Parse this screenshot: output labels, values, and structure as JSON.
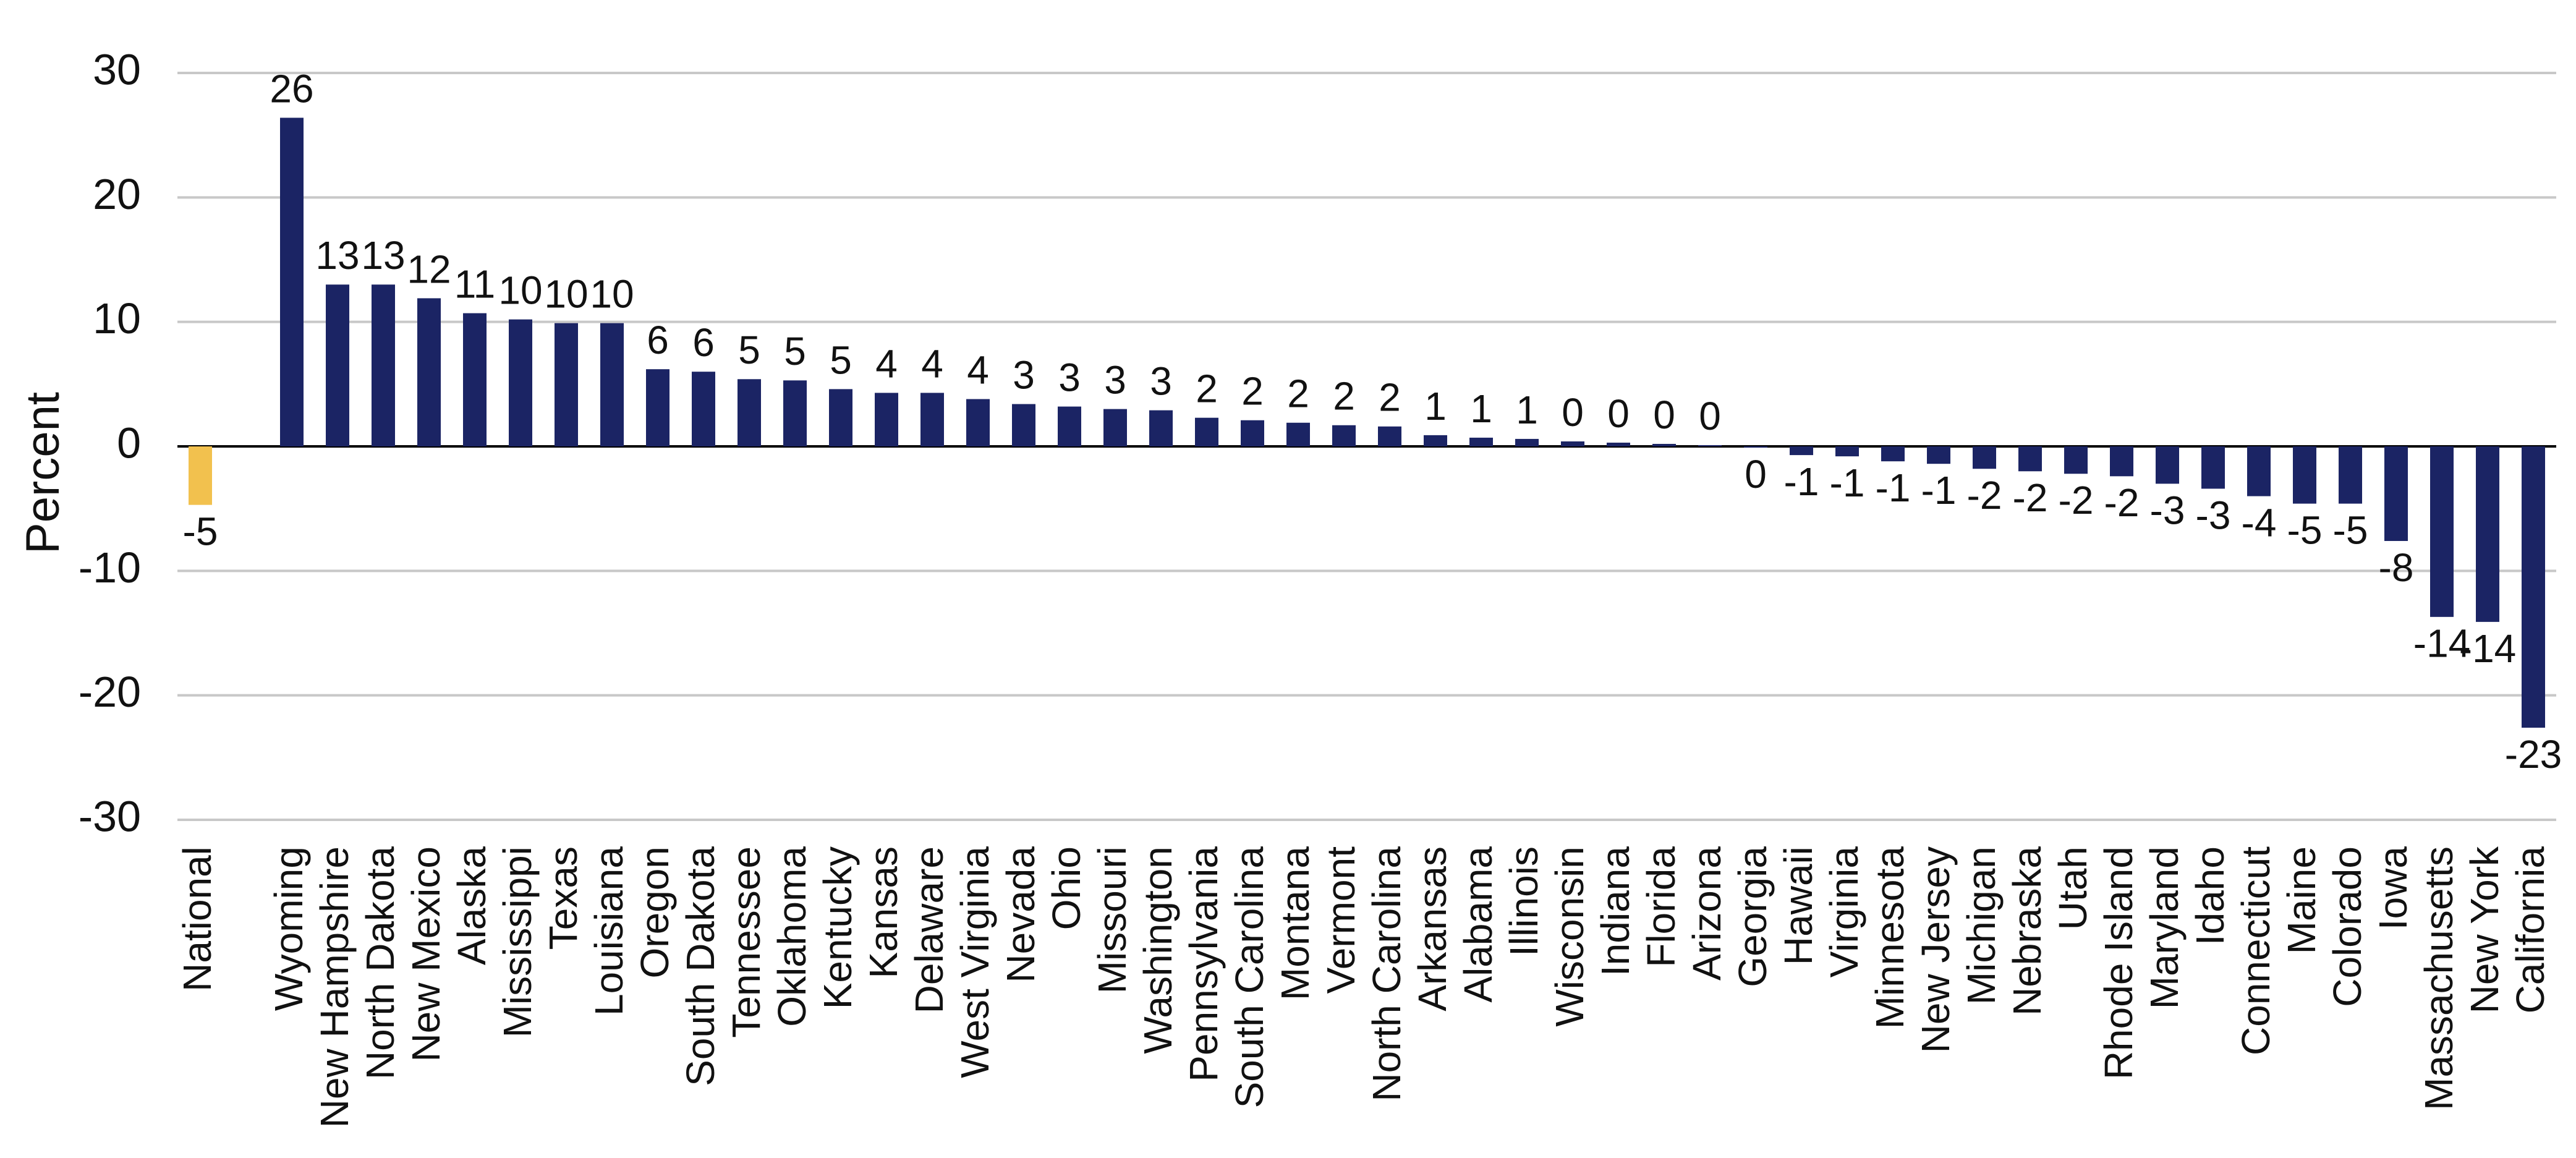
{
  "chart_data": {
    "type": "bar",
    "y_label": "Percent",
    "categories": [
      "National",
      null,
      "Wyoming",
      "New Hampshire",
      "North Dakota",
      "New Mexico",
      "Alaska",
      "Mississippi",
      "Texas",
      "Louisiana",
      "Oregon",
      "South Dakota",
      "Tennessee",
      "Oklahoma",
      "Kentucky",
      "Kansas",
      "Delaware",
      "West Virginia",
      "Nevada",
      "Ohio",
      "Missouri",
      "Washington",
      "Pennsylvania",
      "South Carolina",
      "Montana",
      "Vermont",
      "North Carolina",
      "Arkansas",
      "Alabama",
      "Illinois",
      "Wisconsin",
      "Indiana",
      "Florida",
      "Arizona",
      "Georgia",
      "Hawaii",
      "Virginia",
      "Minnesota",
      "New Jersey",
      "Michigan",
      "Nebraska",
      "Utah",
      "Rhode Island",
      "Maryland",
      "Idaho",
      "Connecticut",
      "Maine",
      "Colorado",
      "Iowa",
      "Massachusetts",
      "New York",
      "California"
    ],
    "values": [
      -4.7,
      null,
      26.4,
      13.0,
      13.0,
      11.9,
      10.7,
      10.2,
      9.9,
      9.9,
      6.2,
      6.0,
      5.4,
      5.3,
      4.6,
      4.3,
      4.3,
      3.8,
      3.4,
      3.2,
      3.0,
      2.9,
      2.3,
      2.1,
      1.9,
      1.7,
      1.6,
      0.9,
      0.7,
      0.6,
      0.4,
      0.3,
      0.2,
      0.1,
      -0.1,
      -0.7,
      -0.8,
      -1.2,
      -1.4,
      -1.8,
      -2.0,
      -2.2,
      -2.4,
      -3.0,
      -3.4,
      -4.0,
      -4.6,
      -4.6,
      -7.6,
      -13.7,
      -14.1,
      -22.6
    ],
    "value_labels": [
      "-5",
      null,
      "26",
      "13",
      "13",
      "12",
      "11",
      "10",
      "10",
      "10",
      "6",
      "6",
      "5",
      "5",
      "5",
      "4",
      "4",
      "4",
      "3",
      "3",
      "3",
      "3",
      "2",
      "2",
      "2",
      "2",
      "2",
      "1",
      "1",
      "1",
      "0",
      "0",
      "0",
      "0",
      "0",
      "-1",
      "-1",
      "-1",
      "-1",
      "-2",
      "-2",
      "-2",
      "-2",
      "-3",
      "-3",
      "-4",
      "-5",
      "-5",
      "-8",
      "-14",
      "-14",
      "-23"
    ],
    "colors": [
      "#f2c14e",
      null,
      "#1b2464",
      "#1b2464",
      "#1b2464",
      "#1b2464",
      "#1b2464",
      "#1b2464",
      "#1b2464",
      "#1b2464",
      "#1b2464",
      "#1b2464",
      "#1b2464",
      "#1b2464",
      "#1b2464",
      "#1b2464",
      "#1b2464",
      "#1b2464",
      "#1b2464",
      "#1b2464",
      "#1b2464",
      "#1b2464",
      "#1b2464",
      "#1b2464",
      "#1b2464",
      "#1b2464",
      "#1b2464",
      "#1b2464",
      "#1b2464",
      "#1b2464",
      "#1b2464",
      "#1b2464",
      "#1b2464",
      "#1b2464",
      "#1b2464",
      "#1b2464",
      "#1b2464",
      "#1b2464",
      "#1b2464",
      "#1b2464",
      "#1b2464",
      "#1b2464",
      "#1b2464",
      "#1b2464",
      "#1b2464",
      "#1b2464",
      "#1b2464",
      "#1b2464",
      "#1b2464",
      "#1b2464",
      "#1b2464",
      "#1b2464"
    ],
    "ylim": [
      -30,
      30
    ],
    "yticks": [
      -30,
      -20,
      -10,
      0,
      10,
      20,
      30
    ],
    "grid": true
  }
}
